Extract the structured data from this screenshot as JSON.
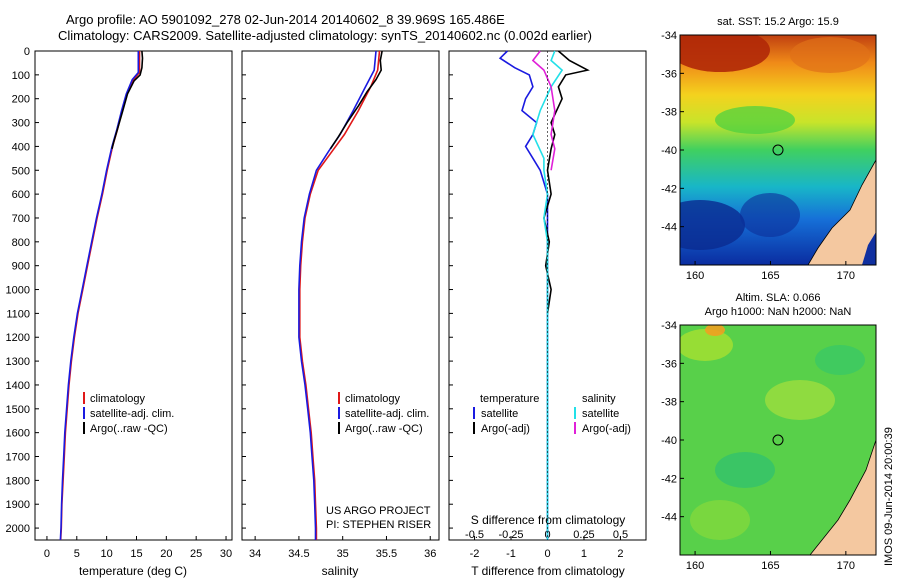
{
  "header": {
    "line1": "Argo profile: AO 5901092_278 02-Jun-2014 20140602_8 39.969S 165.486E",
    "line2": "Climatology: CARS2009. Satellite-adjusted climatology: synTS_20140602.nc (0.002d earlier)"
  },
  "footer": {
    "timestamp": "IMOS 09-Jun-2014 20:00:39"
  },
  "colors": {
    "climatology": "#e01818",
    "satellite": "#1a1ae0",
    "argo": "#000000",
    "salinity_satellite": "#22e0e8",
    "salinity_argo": "#e020d8"
  },
  "chart_data": [
    {
      "id": "temperature",
      "type": "line",
      "xlabel": "temperature (deg C)",
      "ylabel": "",
      "xlim": [
        -2,
        31
      ],
      "ylim": [
        2050,
        0
      ],
      "xticks": [
        0,
        5,
        10,
        15,
        20,
        25,
        30
      ],
      "yticks": [
        0,
        100,
        200,
        300,
        400,
        500,
        600,
        700,
        800,
        900,
        1000,
        1100,
        1200,
        1300,
        1400,
        1500,
        1600,
        1700,
        1800,
        1900,
        2000
      ],
      "legend": {
        "placement": "lower-center",
        "items": [
          "climatology",
          "satellite-adj. clim.",
          "Argo(..raw -QC)"
        ]
      },
      "series": [
        {
          "name": "climatology",
          "color": "#e01818",
          "points": [
            [
              15.5,
              0
            ],
            [
              15.5,
              90
            ],
            [
              14.5,
              120
            ],
            [
              13.4,
              180
            ],
            [
              12.6,
              250
            ],
            [
              11.8,
              330
            ],
            [
              11.0,
              400
            ],
            [
              10.1,
              500
            ],
            [
              9.3,
              600
            ],
            [
              8.4,
              700
            ],
            [
              7.6,
              800
            ],
            [
              6.8,
              900
            ],
            [
              6.0,
              1000
            ],
            [
              5.2,
              1100
            ],
            [
              4.6,
              1200
            ],
            [
              4.1,
              1300
            ],
            [
              3.7,
              1400
            ],
            [
              3.4,
              1500
            ],
            [
              3.1,
              1600
            ],
            [
              2.9,
              1700
            ],
            [
              2.7,
              1800
            ],
            [
              2.5,
              1900
            ],
            [
              2.4,
              2000
            ],
            [
              2.3,
              2050
            ]
          ]
        },
        {
          "name": "satellite-adj. clim.",
          "color": "#1a1ae0",
          "points": [
            [
              15.3,
              0
            ],
            [
              15.3,
              90
            ],
            [
              14.3,
              120
            ],
            [
              13.3,
              180
            ],
            [
              12.5,
              250
            ],
            [
              11.7,
              330
            ],
            [
              10.9,
              400
            ],
            [
              10.0,
              500
            ],
            [
              9.2,
              600
            ],
            [
              8.3,
              700
            ],
            [
              7.5,
              800
            ],
            [
              6.7,
              900
            ],
            [
              5.9,
              1000
            ],
            [
              5.1,
              1100
            ],
            [
              4.5,
              1200
            ],
            [
              4.0,
              1300
            ],
            [
              3.6,
              1400
            ],
            [
              3.3,
              1500
            ],
            [
              3.0,
              1600
            ],
            [
              2.8,
              1700
            ],
            [
              2.6,
              1800
            ],
            [
              2.45,
              1900
            ],
            [
              2.35,
              2000
            ],
            [
              2.25,
              2050
            ]
          ]
        },
        {
          "name": "Argo(..raw -QC)",
          "color": "#000000",
          "points": [
            [
              15.9,
              0
            ],
            [
              16.0,
              30
            ],
            [
              15.9,
              70
            ],
            [
              15.6,
              100
            ],
            [
              14.6,
              125
            ],
            [
              13.5,
              180
            ],
            [
              12.7,
              250
            ],
            [
              11.9,
              320
            ],
            [
              11.2,
              380
            ],
            [
              10.9,
              410
            ]
          ]
        }
      ]
    },
    {
      "id": "salinity",
      "type": "line",
      "xlabel": "salinity",
      "ylabel": "",
      "xlim": [
        33.85,
        36.1
      ],
      "ylim": [
        2050,
        0
      ],
      "xticks": [
        34,
        34.5,
        35,
        35.5,
        36
      ],
      "yticks": [],
      "legend": {
        "placement": "lower-right",
        "items": [
          "climatology",
          "satellite-adj. clim.",
          "Argo(..raw -QC)"
        ]
      },
      "annotations": [
        "US ARGO PROJECT",
        "PI: STEPHEN RISER"
      ],
      "series": [
        {
          "name": "climatology",
          "color": "#e01818",
          "points": [
            [
              35.42,
              0
            ],
            [
              35.4,
              80
            ],
            [
              35.32,
              150
            ],
            [
              35.18,
              250
            ],
            [
              35.02,
              350
            ],
            [
              34.88,
              420
            ],
            [
              34.72,
              500
            ],
            [
              34.63,
              600
            ],
            [
              34.57,
              700
            ],
            [
              34.54,
              800
            ],
            [
              34.52,
              900
            ],
            [
              34.51,
              1000
            ],
            [
              34.51,
              1100
            ],
            [
              34.51,
              1200
            ],
            [
              34.54,
              1300
            ],
            [
              34.58,
              1400
            ],
            [
              34.61,
              1500
            ],
            [
              34.64,
              1600
            ],
            [
              34.66,
              1700
            ],
            [
              34.68,
              1800
            ],
            [
              34.69,
              1900
            ],
            [
              34.7,
              2000
            ],
            [
              34.7,
              2050
            ]
          ]
        },
        {
          "name": "satellite-adj. clim.",
          "color": "#1a1ae0",
          "points": [
            [
              35.38,
              0
            ],
            [
              35.36,
              80
            ],
            [
              35.26,
              150
            ],
            [
              35.12,
              250
            ],
            [
              34.97,
              350
            ],
            [
              34.84,
              420
            ],
            [
              34.7,
              500
            ],
            [
              34.62,
              600
            ],
            [
              34.56,
              700
            ],
            [
              34.53,
              800
            ],
            [
              34.51,
              900
            ],
            [
              34.5,
              1000
            ],
            [
              34.5,
              1100
            ],
            [
              34.5,
              1200
            ],
            [
              34.53,
              1300
            ],
            [
              34.57,
              1400
            ],
            [
              34.6,
              1500
            ],
            [
              34.63,
              1600
            ],
            [
              34.65,
              1700
            ],
            [
              34.67,
              1800
            ],
            [
              34.68,
              1900
            ],
            [
              34.69,
              2000
            ],
            [
              34.69,
              2050
            ]
          ]
        },
        {
          "name": "Argo(..raw -QC)",
          "color": "#000000",
          "points": [
            [
              35.45,
              0
            ],
            [
              35.43,
              40
            ],
            [
              35.44,
              80
            ],
            [
              35.38,
              120
            ],
            [
              35.28,
              170
            ],
            [
              35.18,
              230
            ],
            [
              35.05,
              300
            ],
            [
              34.95,
              360
            ],
            [
              34.86,
              410
            ]
          ]
        }
      ]
    },
    {
      "id": "differences",
      "type": "line",
      "xlabel": "T difference from climatology",
      "xlabel_top": "S difference from climatology",
      "xlim": [
        -2.7,
        2.7
      ],
      "ylim": [
        2050,
        0
      ],
      "xticks": [
        -2,
        -1,
        0,
        1,
        2
      ],
      "xticks_s": [
        -0.5,
        -0.25,
        0,
        0.25,
        0.5
      ],
      "yticks": [],
      "legend": {
        "placement": "lower-center",
        "headers": [
          "temperature",
          "salinity"
        ],
        "items": [
          "satellite",
          "Argo(-adj)",
          "satellite",
          "Argo(-adj)"
        ]
      },
      "series": [
        {
          "name": "satellite",
          "color": "#1a1ae0",
          "points": [
            [
              -1.1,
              0
            ],
            [
              -1.3,
              30
            ],
            [
              -0.9,
              70
            ],
            [
              -0.5,
              100
            ],
            [
              -0.4,
              150
            ],
            [
              -0.6,
              200
            ],
            [
              -0.7,
              250
            ],
            [
              -0.3,
              300
            ],
            [
              -0.4,
              350
            ],
            [
              -0.6,
              400
            ],
            [
              -0.4,
              450
            ],
            [
              -0.2,
              500
            ],
            [
              0.0,
              600
            ],
            [
              0.0,
              700
            ],
            [
              0.0,
              800
            ],
            [
              0.0,
              900
            ],
            [
              0.0,
              1000
            ],
            [
              0.0,
              1500
            ],
            [
              0.0,
              2050
            ]
          ]
        },
        {
          "name": "Argo(-adj)",
          "color": "#000000",
          "points": [
            [
              0.3,
              0
            ],
            [
              0.6,
              40
            ],
            [
              1.1,
              80
            ],
            [
              0.5,
              100
            ],
            [
              0.3,
              150
            ],
            [
              0.4,
              200
            ],
            [
              0.1,
              300
            ],
            [
              0.2,
              350
            ],
            [
              0.1,
              410
            ],
            [
              0.0,
              500
            ],
            [
              0.1,
              600
            ],
            [
              -0.1,
              700
            ],
            [
              0.05,
              800
            ],
            [
              -0.05,
              900
            ],
            [
              0.1,
              1000
            ],
            [
              0.0,
              1100
            ]
          ]
        },
        {
          "name": "satellite",
          "color": "#22e0e8",
          "points": [
            [
              0.2,
              0
            ],
            [
              0.1,
              40
            ],
            [
              0.4,
              80
            ],
            [
              0.1,
              150
            ],
            [
              -0.2,
              250
            ],
            [
              -0.4,
              350
            ],
            [
              -0.1,
              450
            ],
            [
              -0.1,
              500
            ],
            [
              0.0,
              600
            ],
            [
              -0.1,
              700
            ],
            [
              0.0,
              800
            ],
            [
              0.0,
              1000
            ],
            [
              0.0,
              1500
            ],
            [
              0.0,
              2050
            ]
          ]
        },
        {
          "name": "Argo(-adj)",
          "color": "#e020d8",
          "points": [
            [
              -0.2,
              0
            ],
            [
              -0.4,
              40
            ],
            [
              -0.1,
              80
            ],
            [
              0.1,
              150
            ],
            [
              0.2,
              250
            ],
            [
              0.1,
              350
            ],
            [
              0.2,
              410
            ],
            [
              0.1,
              500
            ]
          ]
        }
      ]
    },
    {
      "id": "sst-map",
      "type": "heatmap",
      "title": "sat. SST: 15.2 Argo: 15.9",
      "xticks": [
        160,
        165,
        170
      ],
      "yticks": [
        -34,
        -36,
        -38,
        -40,
        -42,
        -44
      ],
      "xlim": [
        159,
        172
      ],
      "ylim": [
        -46,
        -34
      ],
      "marker": [
        165.5,
        -40
      ]
    },
    {
      "id": "sla-map",
      "type": "heatmap",
      "title_lines": [
        "Altim. SLA: 0.066",
        "Argo h1000: NaN h2000: NaN"
      ],
      "xticks": [
        160,
        165,
        170
      ],
      "yticks": [
        -34,
        -36,
        -38,
        -40,
        -42,
        -44
      ],
      "xlim": [
        159,
        172
      ],
      "ylim": [
        -46,
        -34
      ],
      "marker": [
        165.5,
        -40
      ]
    }
  ]
}
